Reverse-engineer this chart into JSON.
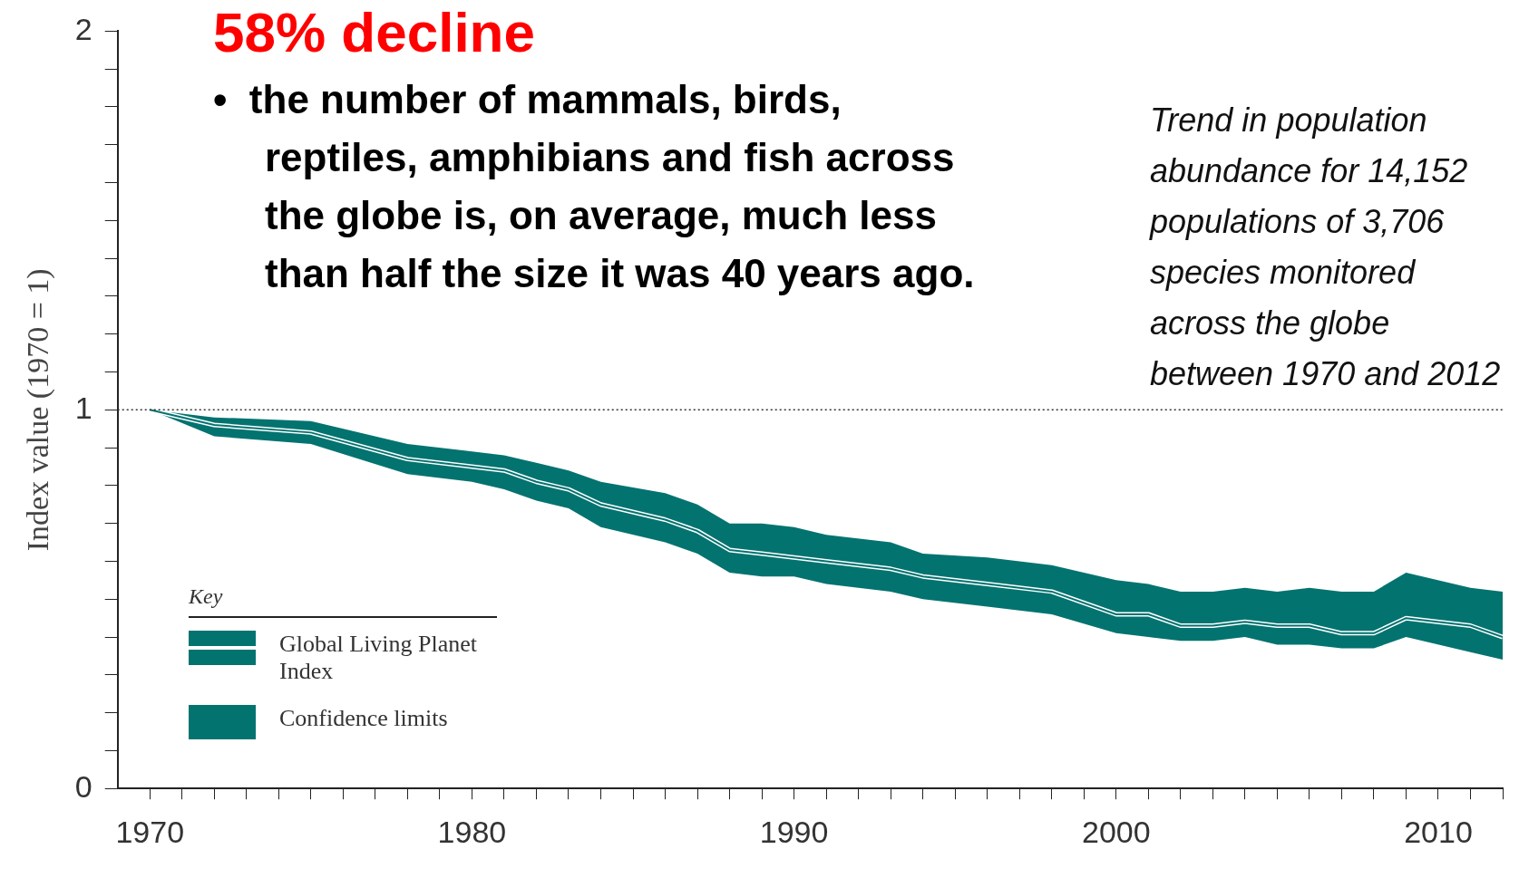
{
  "chart_data": {
    "type": "line",
    "title": "58% decline",
    "subtitle": "•  the number of mammals, birds, reptiles, amphibians and fish across the globe is, on average, much less than half the size it was 40 years ago.",
    "ylabel": "Index value (1970 = 1)",
    "legend_title": "Key",
    "legend": "bottom left",
    "grid": false,
    "marker": "none",
    "annotations": [
      "Trend in population abundance for 14,152 populations of 3,706 species monitored across the globe between 1970 and 2012",
      "Confidence limits"
    ],
    "xlim": [
      1969,
      2012
    ],
    "xticks": [
      1970,
      {
        "value": 1971,
        "label": null
      },
      {
        "value": 1972,
        "label": null
      },
      {
        "value": 1973,
        "label": null
      },
      {
        "value": 1974,
        "label": null
      },
      {
        "value": 1975,
        "label": null
      },
      {
        "value": 1976,
        "label": null
      },
      {
        "value": 1977,
        "label": null
      },
      {
        "value": 1978,
        "label": null
      },
      {
        "value": 1979,
        "label": null
      },
      1980,
      {
        "value": 1981,
        "label": null
      },
      {
        "value": 1982,
        "label": null
      },
      {
        "value": 1983,
        "label": null
      },
      {
        "value": 1984,
        "label": null
      },
      {
        "value": 1985,
        "label": null
      },
      {
        "value": 1986,
        "label": null
      },
      {
        "value": 1987,
        "label": null
      },
      {
        "value": 1988,
        "label": null
      },
      {
        "value": 1989,
        "label": null
      },
      1990,
      {
        "value": 1991,
        "label": null
      },
      {
        "value": 1992,
        "label": null
      },
      {
        "value": 1993,
        "label": null
      },
      {
        "value": 1994,
        "label": null
      },
      {
        "value": 1995,
        "label": null
      },
      {
        "value": 1996,
        "label": null
      },
      {
        "value": 1997,
        "label": null
      },
      {
        "value": 1998,
        "label": null
      },
      {
        "value": 1999,
        "label": null
      },
      2000,
      {
        "value": 2001,
        "label": null
      },
      {
        "value": 2002,
        "label": null
      },
      {
        "value": 2003,
        "label": null
      },
      {
        "value": 2004,
        "label": null
      },
      {
        "value": 2005,
        "label": null
      },
      {
        "value": 2006,
        "label": null
      },
      {
        "value": 2007,
        "label": null
      },
      {
        "value": 2008,
        "label": null
      },
      {
        "value": 2009,
        "label": null
      },
      2010,
      {
        "value": 2011,
        "label": null
      },
      {
        "value": 2012,
        "label": null
      }
    ],
    "ylim": [
      0,
      2
    ],
    "yticks": [
      0,
      {
        "value": 0.1,
        "label": null
      },
      {
        "value": 0.2,
        "label": null
      },
      {
        "value": 0.3,
        "label": null
      },
      {
        "value": 0.4,
        "label": null
      },
      {
        "value": 0.5,
        "label": null
      },
      {
        "value": 0.6,
        "label": null
      },
      {
        "value": 0.7,
        "label": null
      },
      {
        "value": 0.8,
        "label": null
      },
      {
        "value": 0.9,
        "label": null
      },
      1,
      {
        "value": 1.1,
        "label": null
      },
      {
        "value": 1.2,
        "label": null
      },
      {
        "value": 1.3,
        "label": null
      },
      {
        "value": 1.4,
        "label": null
      },
      {
        "value": 1.5,
        "label": null
      },
      {
        "value": 1.6,
        "label": null
      },
      {
        "value": 1.7,
        "label": null
      },
      {
        "value": 1.8,
        "label": null
      },
      {
        "value": 1.9,
        "label": null
      },
      2
    ],
    "ref_lines": [
      {
        "axis": "y",
        "value": 1,
        "color": "#333333",
        "line_style": "dotted"
      }
    ],
    "series": [
      {
        "name": "Global Living Planet Index",
        "color": "#037370",
        "x": [
          1970,
          1972,
          1975,
          1978,
          1980,
          1981,
          1982,
          1983,
          1984,
          1986,
          1987,
          1988,
          1989,
          1990,
          1991,
          1993,
          1994,
          1996,
          1998,
          2000,
          2001,
          2002,
          2003,
          2004,
          2005,
          2006,
          2007,
          2008,
          2009,
          2011,
          2012
        ],
        "values": [
          1.0,
          0.96,
          0.94,
          0.87,
          0.85,
          0.84,
          0.81,
          0.79,
          0.75,
          0.71,
          0.68,
          0.63,
          0.62,
          0.61,
          0.6,
          0.58,
          0.56,
          0.54,
          0.52,
          0.46,
          0.46,
          0.43,
          0.43,
          0.44,
          0.43,
          0.43,
          0.41,
          0.41,
          0.45,
          0.43,
          0.4
        ],
        "lower": [
          1.0,
          0.93,
          0.91,
          0.83,
          0.81,
          0.79,
          0.76,
          0.74,
          0.69,
          0.65,
          0.62,
          0.57,
          0.56,
          0.56,
          0.54,
          0.52,
          0.5,
          0.48,
          0.46,
          0.41,
          0.4,
          0.39,
          0.39,
          0.4,
          0.38,
          0.38,
          0.37,
          0.37,
          0.4,
          0.36,
          0.34
        ],
        "upper": [
          1.0,
          0.98,
          0.97,
          0.91,
          0.89,
          0.88,
          0.86,
          0.84,
          0.81,
          0.78,
          0.75,
          0.7,
          0.7,
          0.69,
          0.67,
          0.65,
          0.62,
          0.61,
          0.59,
          0.55,
          0.54,
          0.52,
          0.52,
          0.53,
          0.52,
          0.53,
          0.52,
          0.52,
          0.57,
          0.53,
          0.52
        ]
      }
    ]
  }
}
